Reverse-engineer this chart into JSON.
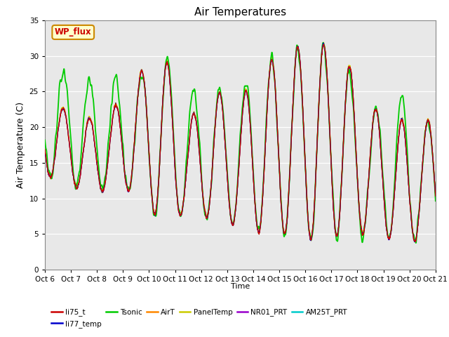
{
  "title": "Air Temperatures",
  "xlabel": "Time",
  "ylabel": "Air Temperature (C)",
  "ylim": [
    0,
    35
  ],
  "yticks": [
    0,
    5,
    10,
    15,
    20,
    25,
    30,
    35
  ],
  "x_labels": [
    "Oct 6",
    "Oct 7",
    "Oct 8",
    "Oct 9",
    "Oct 10",
    "Oct 11",
    "Oct 12",
    "Oct 13",
    "Oct 14",
    "Oct 15",
    "Oct 16",
    "Oct 17",
    "Oct 18",
    "Oct 19",
    "Oct 20",
    "Oct 21"
  ],
  "legend_entries": [
    "li75_t",
    "li77_temp",
    "Tsonic",
    "AirT",
    "PanelTemp",
    "NR01_PRT",
    "AM25T_PRT"
  ],
  "legend_colors": [
    "#cc0000",
    "#0000cc",
    "#00cc00",
    "#ff8800",
    "#cccc00",
    "#9900cc",
    "#00cccc"
  ],
  "wp_flux_box_color": "#ffffcc",
  "wp_flux_text_color": "#cc0000",
  "wp_flux_border_color": "#cc8800",
  "plot_bg_color": "#e8e8e8",
  "n_days": 15,
  "pts_per_day": 144,
  "day_max_temps": [
    23,
    21,
    22,
    27,
    31,
    21,
    25,
    24,
    29,
    31,
    32,
    30,
    23,
    21,
    21
  ],
  "day_min_temps": [
    13,
    11,
    11,
    11,
    6.5,
    8,
    7,
    6,
    5,
    5,
    4,
    5,
    5,
    4,
    4
  ],
  "tsonic_day_max": [
    28.5,
    26.5,
    27,
    27,
    31,
    25,
    25,
    26,
    29,
    31,
    32,
    29.5,
    22,
    25,
    21
  ],
  "tsonic_noise": 0.8
}
